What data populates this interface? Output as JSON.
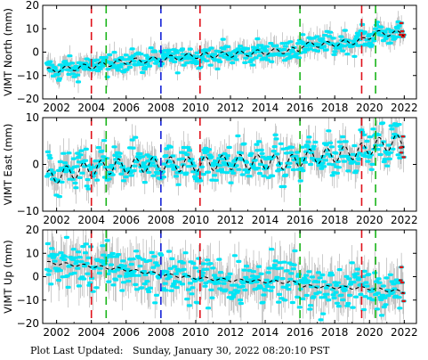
{
  "footer": {
    "label": "Plot Last Updated:",
    "timestamp": "Sunday, January 30, 2022 08:20:10 PST"
  },
  "colors": {
    "errorbar": "#a9a9a9",
    "data": "#00e5f5",
    "model": "#000000",
    "recent": "#dd1111",
    "red_line": "#e0101a",
    "green_line": "#19b419",
    "blue_line": "#1522d8"
  },
  "event_lines": [
    {
      "year": 2004.0,
      "color": "red"
    },
    {
      "year": 2004.85,
      "color": "green"
    },
    {
      "year": 2008.0,
      "color": "blue"
    },
    {
      "year": 2010.25,
      "color": "red"
    },
    {
      "year": 2016.0,
      "color": "green"
    },
    {
      "year": 2019.55,
      "color": "red"
    },
    {
      "year": 2020.35,
      "color": "green"
    }
  ],
  "chart_data": [
    {
      "type": "scatter",
      "ylabel": "VIMT North (mm)",
      "xlim": [
        2001.2,
        2022.7
      ],
      "ylim": [
        -20,
        20
      ],
      "x_ticks": [
        "2002",
        "2004",
        "2006",
        "2008",
        "2010",
        "2012",
        "2014",
        "2016",
        "2018",
        "2020",
        "2022"
      ],
      "y_ticks": [
        "20",
        "10",
        "0",
        "−10",
        "−20"
      ],
      "y_tick_values": [
        20,
        10,
        0,
        -10,
        -20
      ],
      "trend_points": [
        [
          2001.4,
          -8
        ],
        [
          2004.0,
          -6
        ],
        [
          2006.0,
          -4
        ],
        [
          2008.0,
          -3
        ],
        [
          2010.0,
          -1.5
        ],
        [
          2012.0,
          -1
        ],
        [
          2014.0,
          0
        ],
        [
          2015.9,
          1
        ],
        [
          2016.1,
          3
        ],
        [
          2018.0,
          3.5
        ],
        [
          2019.6,
          5
        ],
        [
          2020.3,
          8
        ],
        [
          2022.0,
          8
        ]
      ],
      "seasonal_amplitude": 1.2,
      "scatter": 2.2,
      "errorbar": 4.0
    },
    {
      "type": "scatter",
      "ylabel": "VIMT East (mm)",
      "xlim": [
        2001.2,
        2022.7
      ],
      "ylim": [
        -10,
        10
      ],
      "x_ticks": [
        "2002",
        "2004",
        "2006",
        "2008",
        "2010",
        "2012",
        "2014",
        "2016",
        "2018",
        "2020",
        "2022"
      ],
      "y_ticks": [
        "10",
        "0",
        "−10"
      ],
      "y_tick_values": [
        10,
        0,
        -10
      ],
      "trend_points": [
        [
          2001.4,
          -3
        ],
        [
          2003.0,
          -1.5
        ],
        [
          2005.0,
          -0.5
        ],
        [
          2008.0,
          0
        ],
        [
          2010.0,
          0
        ],
        [
          2012.0,
          0.5
        ],
        [
          2014.0,
          0.5
        ],
        [
          2015.9,
          0.5
        ],
        [
          2016.1,
          1.5
        ],
        [
          2018.0,
          2
        ],
        [
          2019.6,
          3
        ],
        [
          2020.3,
          4
        ],
        [
          2022.0,
          5
        ]
      ],
      "seasonal_amplitude": 1.6,
      "scatter": 2.0,
      "errorbar": 3.0
    },
    {
      "type": "scatter",
      "ylabel": "VIMT Up (mm)",
      "xlim": [
        2001.2,
        2022.7
      ],
      "ylim": [
        -20,
        20
      ],
      "x_ticks": [
        "2002",
        "2004",
        "2006",
        "2008",
        "2010",
        "2012",
        "2014",
        "2016",
        "2018",
        "2020",
        "2022"
      ],
      "y_ticks": [
        "20",
        "10",
        "0",
        "−10",
        "−20"
      ],
      "y_tick_values": [
        20,
        10,
        0,
        -10,
        -20
      ],
      "trend_points": [
        [
          2001.4,
          6
        ],
        [
          2004.0,
          4.5
        ],
        [
          2006.0,
          3
        ],
        [
          2008.0,
          1
        ],
        [
          2010.0,
          -0.5
        ],
        [
          2012.0,
          -1.5
        ],
        [
          2014.0,
          -2
        ],
        [
          2015.9,
          -2.5
        ],
        [
          2016.1,
          -4
        ],
        [
          2018.0,
          -4.5
        ],
        [
          2020.0,
          -5
        ],
        [
          2022.0,
          -6.5
        ]
      ],
      "seasonal_amplitude": 0.6,
      "scatter": 5.0,
      "errorbar": 8.0
    }
  ]
}
